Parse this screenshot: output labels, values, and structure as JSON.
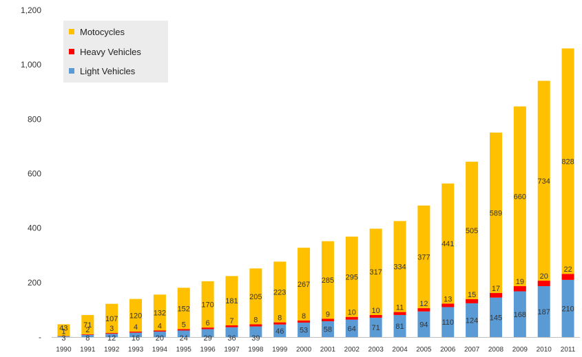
{
  "chart_data": {
    "type": "bar",
    "stacked": true,
    "categories": [
      "1990",
      "1991",
      "1992",
      "1993",
      "1994",
      "1995",
      "1996",
      "1997",
      "1998",
      "1999",
      "2000",
      "2001",
      "2002",
      "2003",
      "2004",
      "2005",
      "2006",
      "2007",
      "2008",
      "2009",
      "2010",
      "2011"
    ],
    "series": [
      {
        "name": "Light Vehicles",
        "color": "#5b9bd5",
        "values": [
          3,
          8,
          12,
          16,
          20,
          24,
          29,
          36,
          39,
          46,
          53,
          58,
          64,
          71,
          81,
          94,
          110,
          124,
          145,
          168,
          187,
          210
        ]
      },
      {
        "name": "Heavy Vehicles",
        "color": "#ff0000",
        "values": [
          1,
          2,
          3,
          4,
          4,
          5,
          6,
          7,
          8,
          8,
          8,
          9,
          10,
          10,
          11,
          12,
          13,
          15,
          17,
          19,
          20,
          22
        ]
      },
      {
        "name": "Motocycles",
        "color": "#ffc000",
        "values": [
          43,
          71,
          107,
          120,
          132,
          152,
          170,
          181,
          205,
          223,
          267,
          285,
          295,
          317,
          334,
          377,
          441,
          505,
          589,
          660,
          734,
          828
        ]
      }
    ],
    "ylim": [
      0,
      1200
    ],
    "yticks": [
      0,
      200,
      400,
      600,
      800,
      1000,
      1200
    ],
    "ytick_labels": [
      "-",
      "200",
      "400",
      "600",
      "800",
      "1,000",
      "1,200"
    ],
    "grid": false,
    "legend": {
      "placement": "top-left",
      "order": [
        "Motocycles",
        "Heavy Vehicles",
        "Light Vehicles"
      ]
    }
  }
}
